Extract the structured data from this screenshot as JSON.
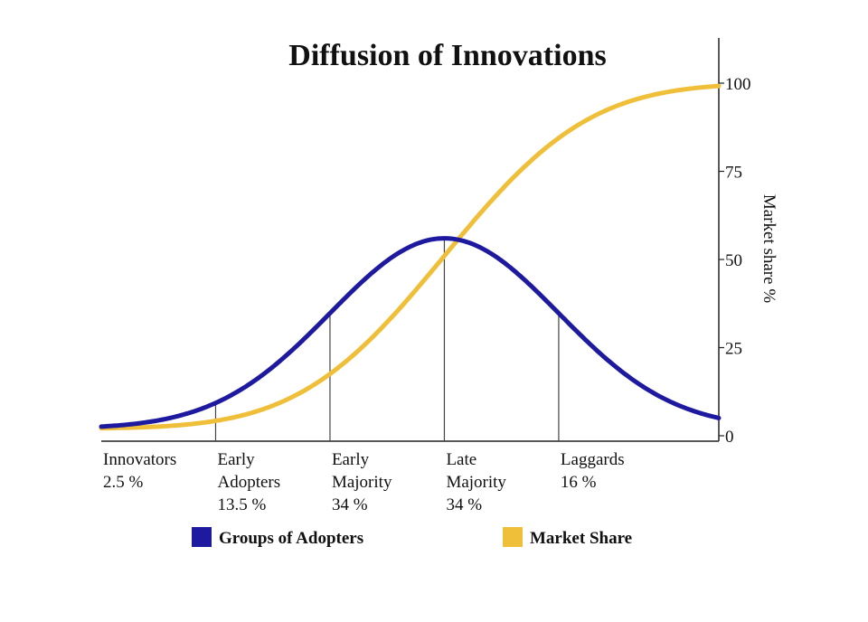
{
  "chart_data": {
    "type": "line",
    "title": "Diffusion of Innovations",
    "xlabel": "",
    "ylabel": "Market share %",
    "ylim": [
      0,
      100
    ],
    "yticks": [
      0,
      25,
      50,
      75,
      100
    ],
    "y_axis_side": "right",
    "grid": false,
    "legend_position": "bottom",
    "segments": [
      {
        "name": "Innovators",
        "share": "2.5 %"
      },
      {
        "name": "Early Adopters",
        "share": "13.5 %"
      },
      {
        "name": "Early Majority",
        "share": "34 %"
      },
      {
        "name": "Late Majority",
        "share": "34 %"
      },
      {
        "name": "Laggards",
        "share": "16 %"
      }
    ],
    "boundaries_sd": [
      -2,
      -1,
      0,
      1
    ],
    "x_range_sd": [
      -3,
      2.4
    ],
    "series": [
      {
        "name": "Groups of Adopters",
        "color": "#1e1aa0",
        "kind": "bell-curve",
        "peak_value": 56,
        "values_at_boundaries": [
          10,
          33,
          56,
          35
        ]
      },
      {
        "name": "Market Share",
        "color": "#f0bf3a",
        "kind": "cumulative",
        "values_at_boundaries": [
          2.5,
          16,
          50,
          84,
          100
        ]
      }
    ]
  },
  "legend": {
    "items": [
      {
        "label": "Groups of Adopters",
        "color": "#1e1aa0"
      },
      {
        "label": "Market Share",
        "color": "#f0bf3a"
      }
    ]
  }
}
